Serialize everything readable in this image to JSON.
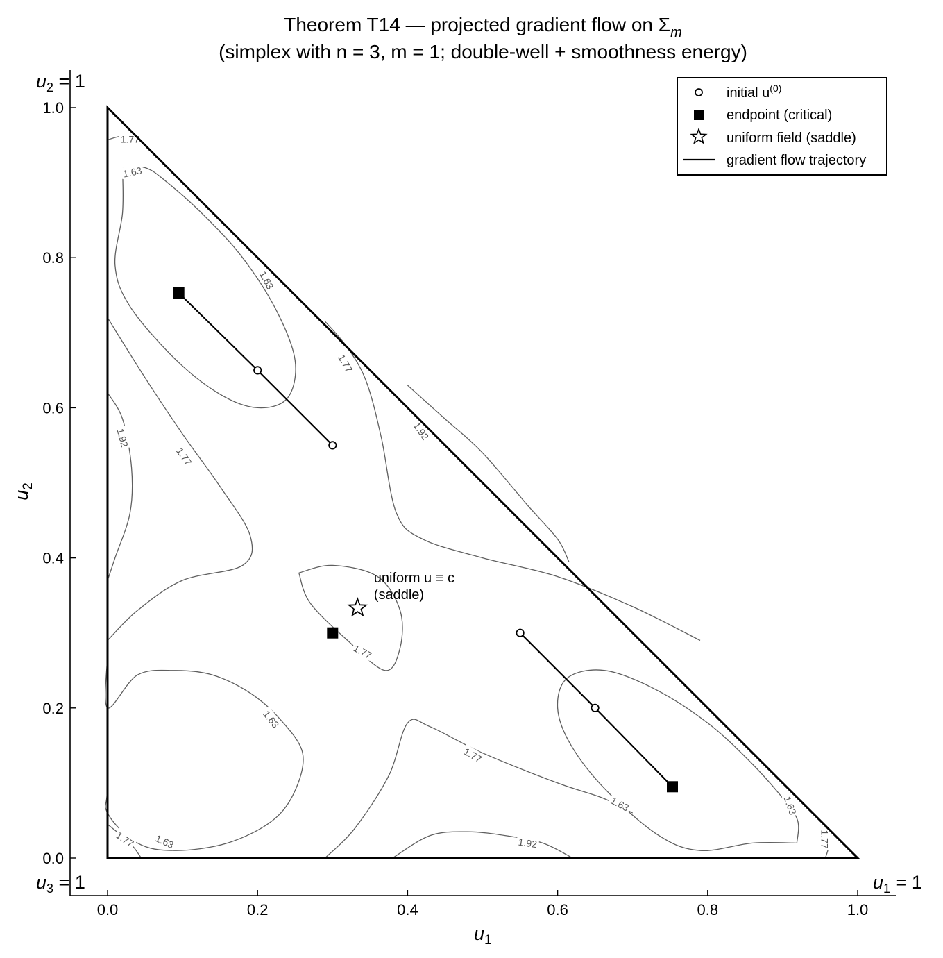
{
  "chart_data": {
    "type": "scatter",
    "title_line1": "Theorem T14  —  projected gradient flow on  Σ",
    "title_line1_sub": "m",
    "title_line2": "(simplex with n = 3, m = 1;  double-well + smoothness energy)",
    "xlabel": "u",
    "xlabel_sub": "1",
    "ylabel": "u",
    "ylabel_sub": "2",
    "xlim": [
      -0.05,
      1.05
    ],
    "ylim": [
      -0.05,
      1.05
    ],
    "x_ticks": [
      0.0,
      0.2,
      0.4,
      0.6,
      0.8,
      1.0
    ],
    "x_tick_labels": [
      "0.0",
      "0.2",
      "0.4",
      "0.6",
      "0.8",
      "1.0"
    ],
    "y_ticks": [
      0.0,
      0.2,
      0.4,
      0.6,
      0.8,
      1.0
    ],
    "y_tick_labels": [
      "0.0",
      "0.2",
      "0.4",
      "0.6",
      "0.8",
      "1.0"
    ],
    "grid": false,
    "legend_position": "top-right",
    "corner_labels": [
      {
        "text": "u",
        "sub": "2",
        "rest": " = 1",
        "anchor": "top-left"
      },
      {
        "text": "u",
        "sub": "3",
        "rest": " = 1",
        "anchor": "bottom-left"
      },
      {
        "text": "u",
        "sub": "1",
        "rest": " = 1",
        "anchor": "bottom-right"
      }
    ],
    "simplex_vertices": [
      [
        0,
        0
      ],
      [
        1,
        0
      ],
      [
        0,
        1
      ]
    ],
    "legend": [
      {
        "label": "initial u",
        "sup": "(0)",
        "marker": "circle"
      },
      {
        "label": "endpoint  (critical)",
        "marker": "square"
      },
      {
        "label": "uniform field  (saddle)",
        "marker": "star"
      },
      {
        "label": "gradient flow trajectory",
        "marker": "line"
      }
    ],
    "trajectories": [
      {
        "start": [
          0.3,
          0.55
        ],
        "mid": [
          0.2,
          0.65
        ],
        "end": [
          0.095,
          0.753
        ]
      },
      {
        "start": [
          0.55,
          0.3
        ],
        "mid": [
          0.65,
          0.2
        ],
        "end": [
          0.753,
          0.095
        ]
      }
    ],
    "initial_points": [
      [
        0.3,
        0.55
      ],
      [
        0.2,
        0.65
      ],
      [
        0.55,
        0.3
      ],
      [
        0.65,
        0.2
      ]
    ],
    "endpoints": [
      [
        0.095,
        0.753
      ],
      [
        0.3,
        0.3
      ],
      [
        0.753,
        0.095
      ]
    ],
    "uniform_point": [
      0.3333,
      0.3333
    ],
    "annotation": {
      "line1": "uniform u ≡ c",
      "line2": "(saddle)",
      "at": [
        0.355,
        0.36
      ]
    },
    "contour_levels": [
      1.63,
      1.77,
      1.92
    ],
    "contour_label_text": [
      "1.63",
      "1.77",
      "1.92"
    ],
    "contours": [
      {
        "level": 1.63,
        "points": [
          [
            0.02,
            0.919
          ],
          [
            0.05,
            0.92
          ],
          [
            0.08,
            0.9
          ],
          [
            0.13,
            0.855
          ],
          [
            0.18,
            0.8
          ],
          [
            0.225,
            0.73
          ],
          [
            0.25,
            0.663
          ],
          [
            0.24,
            0.613
          ],
          [
            0.2,
            0.6
          ],
          [
            0.15,
            0.618
          ],
          [
            0.09,
            0.665
          ],
          [
            0.03,
            0.735
          ],
          [
            0.01,
            0.79
          ],
          [
            0.02,
            0.86
          ],
          [
            0.02,
            0.919
          ]
        ]
      },
      {
        "level": 1.63,
        "points": [
          [
            0.0,
            0.27
          ],
          [
            0.0,
            0.2
          ],
          [
            0.04,
            0.244
          ],
          [
            0.09,
            0.25
          ],
          [
            0.14,
            0.244
          ],
          [
            0.19,
            0.22
          ],
          [
            0.23,
            0.185
          ],
          [
            0.26,
            0.14
          ],
          [
            0.25,
            0.09
          ],
          [
            0.22,
            0.05
          ],
          [
            0.16,
            0.02
          ],
          [
            0.09,
            0.01
          ],
          [
            0.04,
            0.02
          ],
          [
            0.0,
            0.06
          ],
          [
            0.0,
            0.1
          ],
          [
            0.0,
            0.27
          ]
        ]
      },
      {
        "level": 1.63,
        "points": [
          [
            0.919,
            0.02
          ],
          [
            0.92,
            0.05
          ],
          [
            0.9,
            0.08
          ],
          [
            0.855,
            0.13
          ],
          [
            0.8,
            0.18
          ],
          [
            0.73,
            0.225
          ],
          [
            0.663,
            0.25
          ],
          [
            0.613,
            0.24
          ],
          [
            0.6,
            0.2
          ],
          [
            0.618,
            0.15
          ],
          [
            0.665,
            0.09
          ],
          [
            0.735,
            0.03
          ],
          [
            0.79,
            0.01
          ],
          [
            0.86,
            0.02
          ],
          [
            0.919,
            0.02
          ]
        ]
      },
      {
        "level": 1.77,
        "points": [
          [
            0.0,
            0.72
          ],
          [
            0.05,
            0.64
          ],
          [
            0.1,
            0.565
          ],
          [
            0.15,
            0.495
          ],
          [
            0.19,
            0.43
          ],
          [
            0.18,
            0.39
          ],
          [
            0.1,
            0.37
          ],
          [
            0.04,
            0.33
          ],
          [
            0.0,
            0.29
          ]
        ]
      },
      {
        "level": 1.77,
        "points": [
          [
            0.29,
            0.715
          ],
          [
            0.32,
            0.68
          ],
          [
            0.345,
            0.635
          ],
          [
            0.365,
            0.56
          ],
          [
            0.385,
            0.46
          ],
          [
            0.42,
            0.425
          ],
          [
            0.5,
            0.4
          ],
          [
            0.6,
            0.375
          ],
          [
            0.7,
            0.335
          ],
          [
            0.79,
            0.29
          ]
        ]
      },
      {
        "level": 1.77,
        "points": [
          [
            0.29,
            0.0
          ],
          [
            0.33,
            0.04
          ],
          [
            0.375,
            0.11
          ],
          [
            0.4,
            0.18
          ],
          [
            0.43,
            0.175
          ],
          [
            0.5,
            0.14
          ],
          [
            0.6,
            0.1
          ],
          [
            0.66,
            0.08
          ],
          [
            0.7,
            0.06
          ]
        ]
      },
      {
        "level": 1.77,
        "points": [
          [
            0.255,
            0.38
          ],
          [
            0.3,
            0.39
          ],
          [
            0.36,
            0.375
          ],
          [
            0.39,
            0.33
          ],
          [
            0.39,
            0.28
          ],
          [
            0.37,
            0.25
          ],
          [
            0.32,
            0.29
          ],
          [
            0.27,
            0.34
          ],
          [
            0.255,
            0.38
          ]
        ]
      },
      {
        "level": 1.92,
        "points": [
          [
            0.0,
            0.62
          ],
          [
            0.02,
            0.585
          ],
          [
            0.032,
            0.52
          ],
          [
            0.03,
            0.46
          ],
          [
            0.01,
            0.4
          ],
          [
            0.0,
            0.37
          ]
        ]
      },
      {
        "level": 1.92,
        "points": [
          [
            0.38,
            0.0
          ],
          [
            0.43,
            0.03
          ],
          [
            0.48,
            0.035
          ],
          [
            0.53,
            0.03
          ],
          [
            0.58,
            0.02
          ],
          [
            0.62,
            0.0
          ]
        ]
      },
      {
        "level": 1.92,
        "points": [
          [
            0.4,
            0.63
          ],
          [
            0.45,
            0.585
          ],
          [
            0.5,
            0.54
          ],
          [
            0.56,
            0.47
          ],
          [
            0.6,
            0.425
          ],
          [
            0.615,
            0.395
          ]
        ]
      },
      {
        "level": 1.77,
        "points": [
          [
            0.0,
            0.957
          ],
          [
            0.02,
            0.962
          ],
          [
            0.043,
            0.957
          ]
        ]
      },
      {
        "level": 1.77,
        "points": [
          [
            0.957,
            0.0
          ],
          [
            0.962,
            0.02
          ],
          [
            0.957,
            0.043
          ]
        ]
      },
      {
        "level": 1.77,
        "points": [
          [
            0.0,
            0.045
          ],
          [
            0.03,
            0.02
          ],
          [
            0.045,
            0.0
          ]
        ]
      }
    ],
    "contour_labels": [
      {
        "text": "1.77",
        "at": [
          0.03,
          0.958
        ],
        "angle": 0
      },
      {
        "text": "1.63",
        "at": [
          0.033,
          0.914
        ],
        "angle": -12
      },
      {
        "text": "1.63",
        "at": [
          0.212,
          0.77
        ],
        "angle": 62
      },
      {
        "text": "1.77",
        "at": [
          0.317,
          0.659
        ],
        "angle": 60
      },
      {
        "text": "1.92",
        "at": [
          0.418,
          0.569
        ],
        "angle": 55
      },
      {
        "text": "1.92",
        "at": [
          0.02,
          0.56
        ],
        "angle": 75
      },
      {
        "text": "1.77",
        "at": [
          0.102,
          0.535
        ],
        "angle": 55
      },
      {
        "text": "1.77",
        "at": [
          0.34,
          0.275
        ],
        "angle": 28
      },
      {
        "text": "1.63",
        "at": [
          0.218,
          0.185
        ],
        "angle": 52
      },
      {
        "text": "1.77",
        "at": [
          0.487,
          0.137
        ],
        "angle": 30
      },
      {
        "text": "1.63",
        "at": [
          0.683,
          0.072
        ],
        "angle": 28
      },
      {
        "text": "1.63",
        "at": [
          0.91,
          0.07
        ],
        "angle": 70
      },
      {
        "text": "1.92",
        "at": [
          0.56,
          0.02
        ],
        "angle": 8
      },
      {
        "text": "1.77",
        "at": [
          0.956,
          0.025
        ],
        "angle": 90
      },
      {
        "text": "1.77",
        "at": [
          0.023,
          0.025
        ],
        "angle": 35
      },
      {
        "text": "1.63",
        "at": [
          0.076,
          0.022
        ],
        "angle": 25
      }
    ]
  }
}
